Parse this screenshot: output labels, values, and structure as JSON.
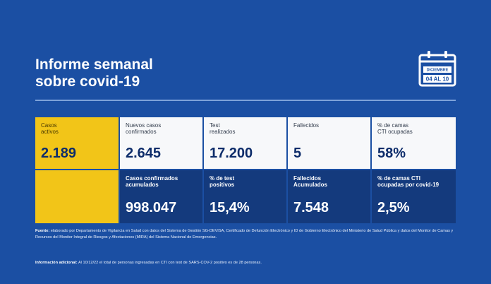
{
  "header": {
    "title_line1": "Informe semanal",
    "title_line2": "sobre covid-19"
  },
  "calendar": {
    "month": "DICIEMBRE",
    "range": "04 AL 10"
  },
  "stats_top": [
    {
      "label": "Casos\nactivos",
      "value": "2.189"
    },
    {
      "label": "Nuevos casos\nconfirmados",
      "value": "2.645"
    },
    {
      "label": "Test\nrealizados",
      "value": "17.200"
    },
    {
      "label": "Fallecidos",
      "value": "5"
    },
    {
      "label": "% de camas\nCTI ocupadas",
      "value": "58%"
    }
  ],
  "stats_bottom": [
    {
      "label": "Casos confirmados\nacumulados",
      "value": "998.047"
    },
    {
      "label": "% de test\npositivos",
      "value": "15,4%"
    },
    {
      "label": "Fallecidos\nAcumulados",
      "value": "7.548"
    },
    {
      "label": "% de camas CTI\nocupadas por covid-19",
      "value": "2,5%"
    }
  ],
  "footer": {
    "source_label": "Fuente:",
    "source_text": "elaborado por Departamento de Vigilancia en Salud con datos del Sistema de Gestión SG-DEVISA, Certificado de Defunción Electrónico y ID de Gobierno Electrónico del Ministerio de Salud Pública y datos del Monitor de Camas y Recursos del Monitor Integral de Riesgos y Afectaciones (MIRA) del Sistema Nacional de Emergencias.",
    "info_label": "Información adicional:",
    "info_text": "Al 10/12/22 el total de personas ingresadas en CTI con test de SARS-COV-2 positivo es de 28 personas."
  },
  "colors": {
    "background": "#1b4fa3",
    "highlight": "#f2c518",
    "dark_cell": "#143a7d",
    "light_cell": "#f7f8fa",
    "value_text": "#0d2c6a"
  }
}
